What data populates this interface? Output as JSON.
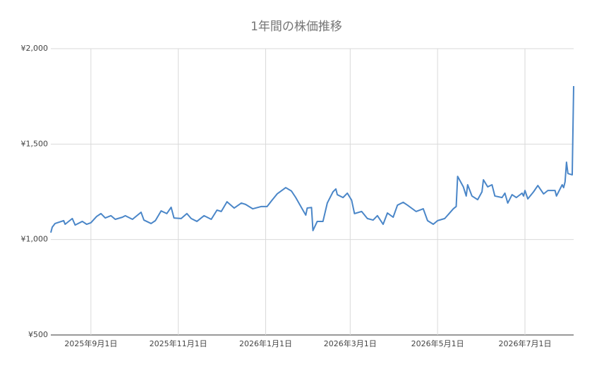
{
  "chart_data": {
    "type": "line",
    "title": "1年間の株価推移",
    "x": [
      "2025-08-04",
      "2025-08-05",
      "2025-08-07",
      "2025-08-13",
      "2025-08-14",
      "2025-08-19",
      "2025-08-21",
      "2025-08-26",
      "2025-08-29",
      "2025-09-01",
      "2025-09-05",
      "2025-09-08",
      "2025-09-11",
      "2025-09-15",
      "2025-09-18",
      "2025-09-23",
      "2025-09-25",
      "2025-09-30",
      "2025-10-06",
      "2025-10-08",
      "2025-10-13",
      "2025-10-16",
      "2025-10-20",
      "2025-10-24",
      "2025-10-27",
      "2025-10-29",
      "2025-11-03",
      "2025-11-07",
      "2025-11-10",
      "2025-11-14",
      "2025-11-19",
      "2025-11-24",
      "2025-11-28",
      "2025-12-01",
      "2025-12-05",
      "2025-12-10",
      "2025-12-15",
      "2025-12-18",
      "2025-12-23",
      "2025-12-29",
      "2026-01-02",
      "2026-01-05",
      "2026-01-09",
      "2026-01-15",
      "2026-01-19",
      "2026-01-22",
      "2026-01-27",
      "2026-01-29",
      "2026-01-30",
      "2026-02-02",
      "2026-02-03",
      "2026-02-06",
      "2026-02-10",
      "2026-02-13",
      "2026-02-17",
      "2026-02-19",
      "2026-02-20",
      "2026-02-24",
      "2026-02-27",
      "2026-03-02",
      "2026-03-04",
      "2026-03-09",
      "2026-03-13",
      "2026-03-17",
      "2026-03-20",
      "2026-03-24",
      "2026-03-27",
      "2026-03-31",
      "2026-04-03",
      "2026-04-07",
      "2026-04-10",
      "2026-04-16",
      "2026-04-21",
      "2026-04-24",
      "2026-04-28",
      "2026-05-01",
      "2026-05-06",
      "2026-05-12",
      "2026-05-14",
      "2026-05-15",
      "2026-05-19",
      "2026-05-21",
      "2026-05-22",
      "2026-05-25",
      "2026-05-29",
      "2026-06-01",
      "2026-06-02",
      "2026-06-05",
      "2026-06-08",
      "2026-06-10",
      "2026-06-15",
      "2026-06-17",
      "2026-06-19",
      "2026-06-22",
      "2026-06-25",
      "2026-06-29",
      "2026-06-30",
      "2026-07-01",
      "2026-07-03",
      "2026-07-07",
      "2026-07-10",
      "2026-07-14",
      "2026-07-17",
      "2026-07-22",
      "2026-07-23",
      "2026-07-27",
      "2026-07-28",
      "2026-07-29",
      "2026-07-30",
      "2026-07-31",
      "2026-08-03",
      "2026-08-04"
    ],
    "series": [
      {
        "color": "#4a86c8",
        "values": [
          1036,
          1065,
          1084,
          1099,
          1080,
          1110,
          1076,
          1095,
          1080,
          1088,
          1121,
          1136,
          1113,
          1125,
          1106,
          1117,
          1125,
          1106,
          1143,
          1102,
          1084,
          1099,
          1150,
          1136,
          1169,
          1113,
          1110,
          1136,
          1110,
          1095,
          1125,
          1106,
          1154,
          1147,
          1198,
          1165,
          1191,
          1184,
          1161,
          1173,
          1173,
          1202,
          1239,
          1272,
          1254,
          1220,
          1154,
          1128,
          1165,
          1168,
          1047,
          1095,
          1095,
          1191,
          1250,
          1265,
          1235,
          1220,
          1243,
          1206,
          1136,
          1147,
          1110,
          1102,
          1125,
          1080,
          1139,
          1117,
          1180,
          1195,
          1180,
          1147,
          1161,
          1099,
          1080,
          1099,
          1110,
          1161,
          1173,
          1331,
          1276,
          1228,
          1287,
          1228,
          1209,
          1250,
          1313,
          1276,
          1287,
          1228,
          1220,
          1243,
          1191,
          1235,
          1220,
          1243,
          1228,
          1257,
          1213,
          1250,
          1283,
          1239,
          1257,
          1257,
          1228,
          1287,
          1272,
          1302,
          1405,
          1346,
          1339,
          1804
        ]
      }
    ],
    "xlim": [
      "2025-08-04",
      "2026-08-04"
    ],
    "xticks": [
      {
        "value": "2025-09-01",
        "label": "2025年9月1日"
      },
      {
        "value": "2025-11-01",
        "label": "2025年11月1日"
      },
      {
        "value": "2026-01-01",
        "label": "2026年1月1日"
      },
      {
        "value": "2026-03-01",
        "label": "2026年3月1日"
      },
      {
        "value": "2026-05-01",
        "label": "2026年5月1日"
      },
      {
        "value": "2026-07-01",
        "label": "2026年7月1日"
      }
    ],
    "ylim": [
      500,
      2000
    ],
    "yticks": [
      {
        "value": 500,
        "label": "¥500"
      },
      {
        "value": 1000,
        "label": "¥1,000"
      },
      {
        "value": 1500,
        "label": "¥1,500"
      },
      {
        "value": 2000,
        "label": "¥2,000"
      }
    ],
    "grid": true
  }
}
